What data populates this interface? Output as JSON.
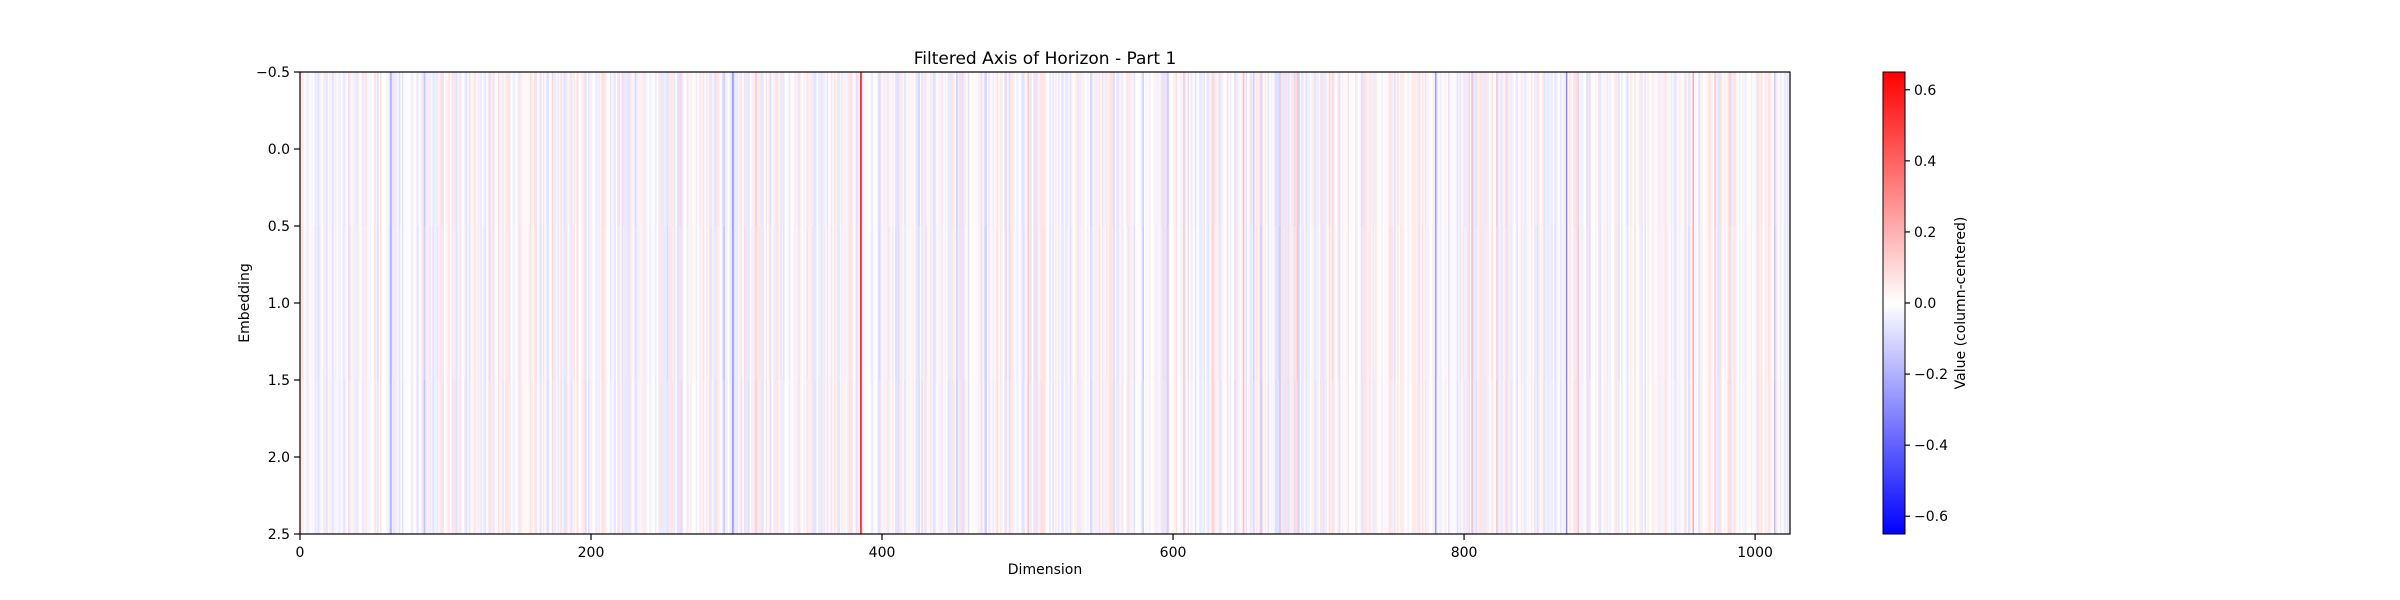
{
  "chart_data": {
    "type": "heatmap",
    "title": "Filtered Axis of Horizon - Part 1",
    "xlabel": "Dimension",
    "ylabel": "Embedding",
    "xlim": [
      0,
      1024
    ],
    "ylim": [
      2.5,
      -0.5
    ],
    "x_ticks": [
      0,
      200,
      400,
      600,
      800,
      1000
    ],
    "x_tick_labels": [
      "0",
      "200",
      "400",
      "600",
      "800",
      "1000"
    ],
    "y_ticks": [
      -0.5,
      0.0,
      0.5,
      1.0,
      1.5,
      2.0,
      2.5
    ],
    "y_tick_labels": [
      "−0.5",
      "0.0",
      "0.5",
      "1.0",
      "1.5",
      "2.0",
      "2.5"
    ],
    "rows": 3,
    "columns": 1024,
    "colormap": "bwr",
    "colorbar": {
      "label": "Value (column-centered)",
      "range": [
        -0.65,
        0.65
      ],
      "ticks": [
        -0.6,
        -0.4,
        -0.2,
        0.0,
        0.2,
        0.4,
        0.6
      ],
      "tick_labels": [
        "−0.6",
        "−0.4",
        "−0.2",
        "0.0",
        "0.2",
        "0.4",
        "0.6"
      ]
    },
    "notable_columns": [
      {
        "dimension": 385,
        "value": 0.65
      },
      {
        "dimension": 297,
        "value": -0.28
      },
      {
        "dimension": 62,
        "value": -0.22
      },
      {
        "dimension": 780,
        "value": -0.25
      },
      {
        "dimension": 870,
        "value": -0.3
      },
      {
        "dimension": 957,
        "value": 0.22
      },
      {
        "dimension": 805,
        "value": 0.18
      },
      {
        "dimension": 500,
        "value": 0.15
      },
      {
        "dimension": 607,
        "value": 0.15
      }
    ]
  },
  "colors": {
    "positive": "#ff0000",
    "neutral": "#ffffff",
    "negative": "#0000ff"
  }
}
